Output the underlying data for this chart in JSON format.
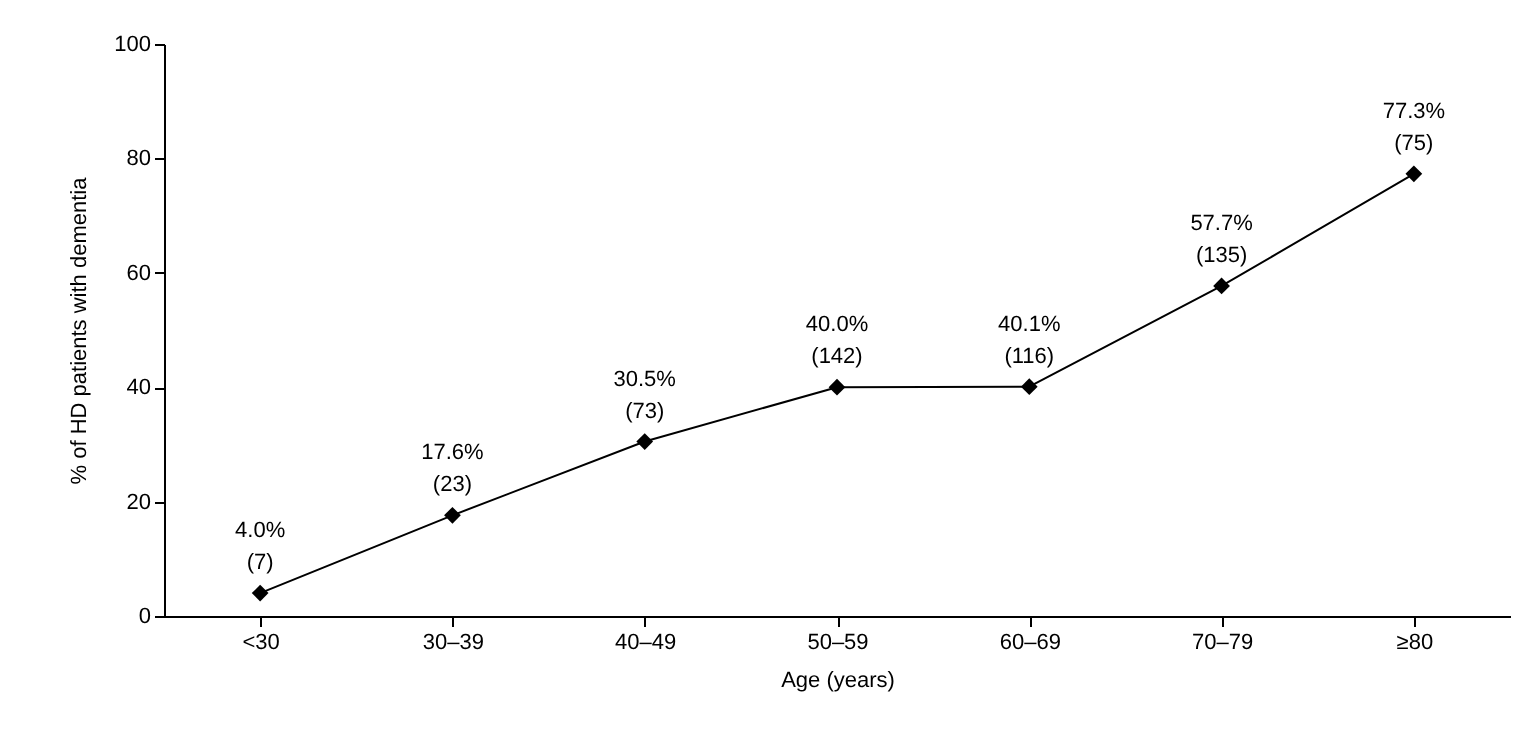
{
  "chart_data": {
    "type": "line",
    "xlabel": "Age (years)",
    "ylabel": "% of HD patients with dementia",
    "categories": [
      "<30",
      "30–39",
      "40–49",
      "50–59",
      "60–69",
      "70–79",
      "≥80"
    ],
    "series": [
      {
        "color": "#000000",
        "values": [
          4.0,
          17.6,
          30.5,
          40.0,
          40.1,
          57.7,
          77.3
        ],
        "value_labels": [
          "4.0%\n(7)",
          "17.6%\n(23)",
          "30.5%\n(73)",
          "40.0%\n(142)",
          "40.1%\n(116)",
          "57.7%\n(135)",
          "77.3%\n(75)"
        ]
      }
    ],
    "ylim": [
      0,
      100
    ],
    "yticks": [
      0,
      20,
      40,
      60,
      80,
      100
    ],
    "grid": false,
    "marker": "diamond",
    "line_style": "solid"
  }
}
